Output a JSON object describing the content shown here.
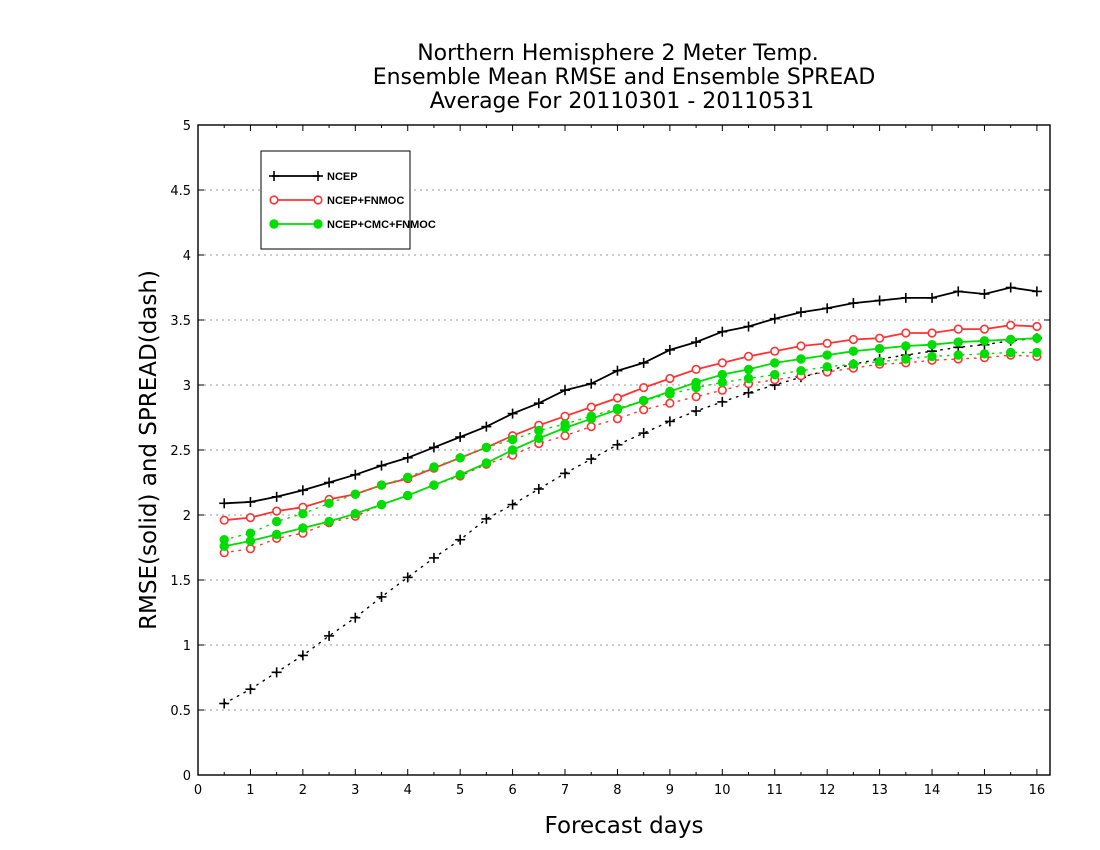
{
  "chart_data": {
    "type": "line",
    "title_lines": [
      "Northern Hemisphere 2 Meter Temp.",
      "Ensemble Mean RMSE and Ensemble SPREAD",
      "Average For 20110301 - 20110531"
    ],
    "xlabel": "Forecast days",
    "ylabel": "RMSE(solid) and SPREAD(dash)",
    "xlim": [
      0,
      16.25
    ],
    "ylim": [
      0,
      5
    ],
    "x_ticks": [
      0,
      1,
      2,
      3,
      4,
      5,
      6,
      7,
      8,
      9,
      10,
      11,
      12,
      13,
      14,
      15,
      16
    ],
    "y_ticks": [
      0,
      0.5,
      1,
      1.5,
      2,
      2.5,
      3,
      3.5,
      4,
      4.5,
      5
    ],
    "y_tick_labels": [
      "0",
      "0.5",
      "1",
      "1.5",
      "2",
      "2.5",
      "3",
      "3.5",
      "4",
      "4.5",
      "5"
    ],
    "grid": "horizontal dotted",
    "legend_position": "top-left",
    "x": [
      0.5,
      1,
      1.5,
      2,
      2.5,
      3,
      3.5,
      4,
      4.5,
      5,
      5.5,
      6,
      6.5,
      7,
      7.5,
      8,
      8.5,
      9,
      9.5,
      10,
      10.5,
      11,
      11.5,
      12,
      12.5,
      13,
      13.5,
      14,
      14.5,
      15,
      15.5,
      16
    ],
    "series": [
      {
        "name": "NCEP",
        "color": "#000000",
        "marker": "plus",
        "rmse": [
          2.09,
          2.1,
          2.14,
          2.19,
          2.25,
          2.31,
          2.38,
          2.44,
          2.52,
          2.6,
          2.68,
          2.78,
          2.86,
          2.96,
          3.01,
          3.11,
          3.17,
          3.27,
          3.33,
          3.41,
          3.45,
          3.51,
          3.56,
          3.59,
          3.63,
          3.65,
          3.67,
          3.67,
          3.72,
          3.7,
          3.75,
          3.72
        ],
        "spread": [
          0.55,
          0.66,
          0.79,
          0.92,
          1.07,
          1.21,
          1.37,
          1.52,
          1.67,
          1.81,
          1.97,
          2.08,
          2.2,
          2.32,
          2.43,
          2.54,
          2.63,
          2.72,
          2.8,
          2.87,
          2.94,
          3.0,
          3.06,
          3.11,
          3.16,
          3.2,
          3.23,
          3.26,
          3.29,
          3.31,
          3.34,
          3.36
        ]
      },
      {
        "name": "NCEP+FNMOC",
        "color": "#ff3333",
        "marker": "open-circle",
        "rmse": [
          1.96,
          1.98,
          2.03,
          2.06,
          2.12,
          2.16,
          2.23,
          2.28,
          2.36,
          2.44,
          2.52,
          2.61,
          2.69,
          2.76,
          2.83,
          2.9,
          2.98,
          3.05,
          3.12,
          3.17,
          3.22,
          3.26,
          3.3,
          3.32,
          3.35,
          3.36,
          3.4,
          3.4,
          3.43,
          3.43,
          3.46,
          3.45
        ],
        "spread": [
          1.71,
          1.74,
          1.82,
          1.86,
          1.94,
          1.99,
          2.08,
          2.15,
          2.23,
          2.3,
          2.39,
          2.46,
          2.55,
          2.61,
          2.68,
          2.74,
          2.81,
          2.86,
          2.91,
          2.96,
          3.01,
          3.04,
          3.07,
          3.1,
          3.13,
          3.16,
          3.17,
          3.19,
          3.2,
          3.21,
          3.23,
          3.22
        ]
      },
      {
        "name": "NCEP+CMC+FNMOC",
        "color": "#00dd00",
        "marker": "filled-circle",
        "rmse": [
          1.76,
          1.8,
          1.85,
          1.9,
          1.95,
          2.01,
          2.08,
          2.15,
          2.23,
          2.31,
          2.4,
          2.5,
          2.59,
          2.67,
          2.74,
          2.81,
          2.88,
          2.95,
          3.02,
          3.08,
          3.12,
          3.17,
          3.2,
          3.23,
          3.26,
          3.28,
          3.3,
          3.31,
          3.33,
          3.34,
          3.35,
          3.36
        ],
        "spread": [
          1.81,
          1.86,
          1.95,
          2.01,
          2.09,
          2.16,
          2.23,
          2.29,
          2.37,
          2.44,
          2.52,
          2.58,
          2.65,
          2.7,
          2.76,
          2.82,
          2.88,
          2.93,
          2.98,
          3.02,
          3.05,
          3.08,
          3.11,
          3.14,
          3.16,
          3.18,
          3.2,
          3.22,
          3.23,
          3.24,
          3.25,
          3.25
        ]
      }
    ]
  }
}
